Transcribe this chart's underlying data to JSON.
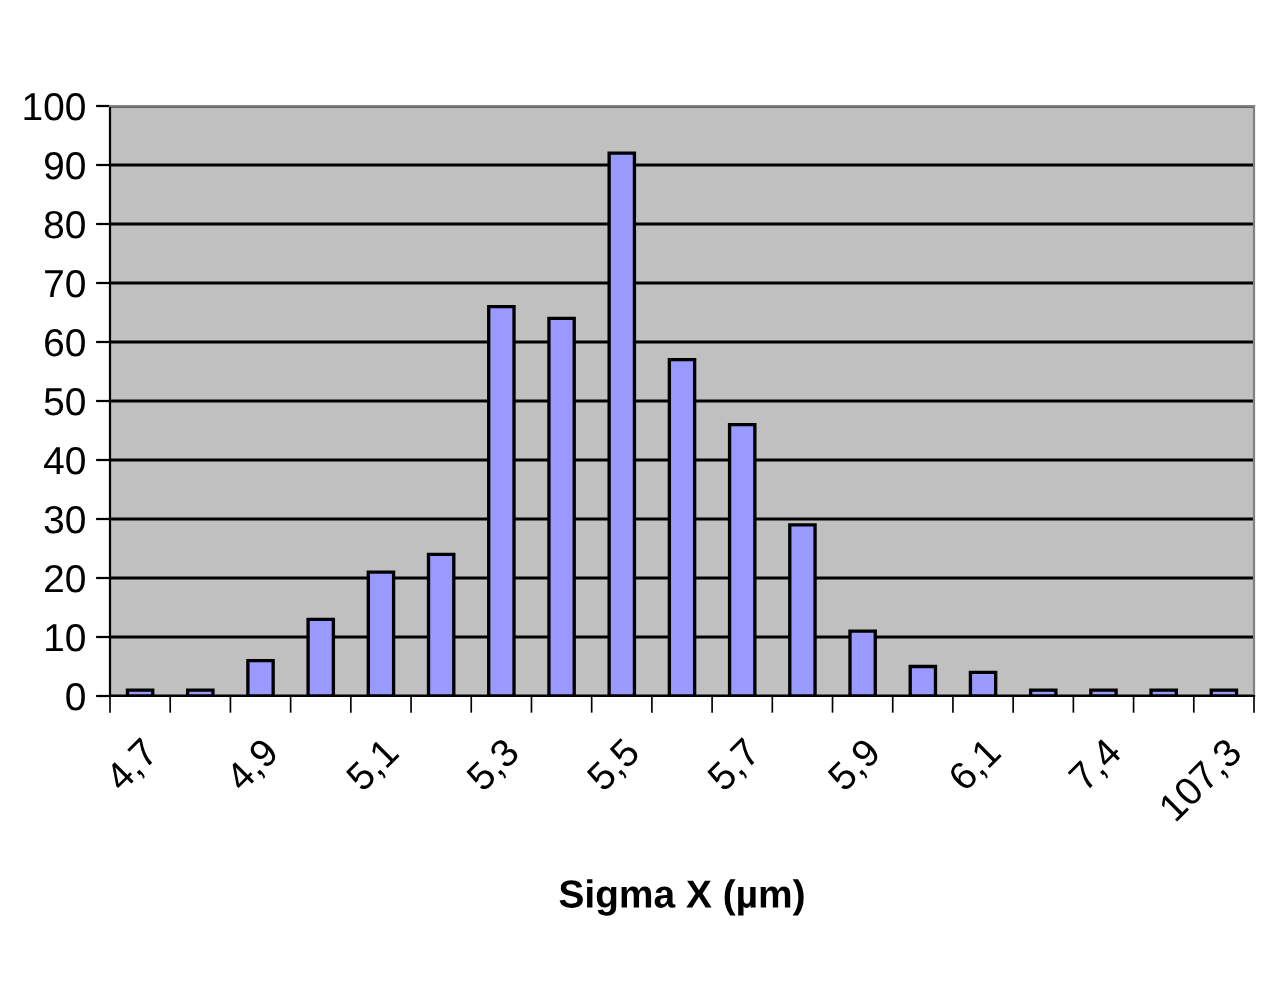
{
  "chart_data": {
    "type": "bar",
    "xlabel": "Sigma X (µm)",
    "categories": [
      "4,7",
      null,
      "4,9",
      null,
      "5,1",
      null,
      "5,3",
      null,
      "5,5",
      null,
      "5,7",
      null,
      "5,9",
      null,
      "6,1",
      null,
      "7,4",
      null,
      "107,3"
    ],
    "values": [
      1,
      1,
      6,
      13,
      21,
      24,
      66,
      64,
      92,
      57,
      46,
      29,
      11,
      5,
      4,
      1,
      1,
      1,
      1
    ],
    "color": "#9999ff",
    "ylim": [
      0,
      100
    ],
    "yticks": [
      0,
      10,
      20,
      30,
      40,
      50,
      60,
      70,
      80,
      90,
      100
    ],
    "grid": "y",
    "legend": false
  }
}
